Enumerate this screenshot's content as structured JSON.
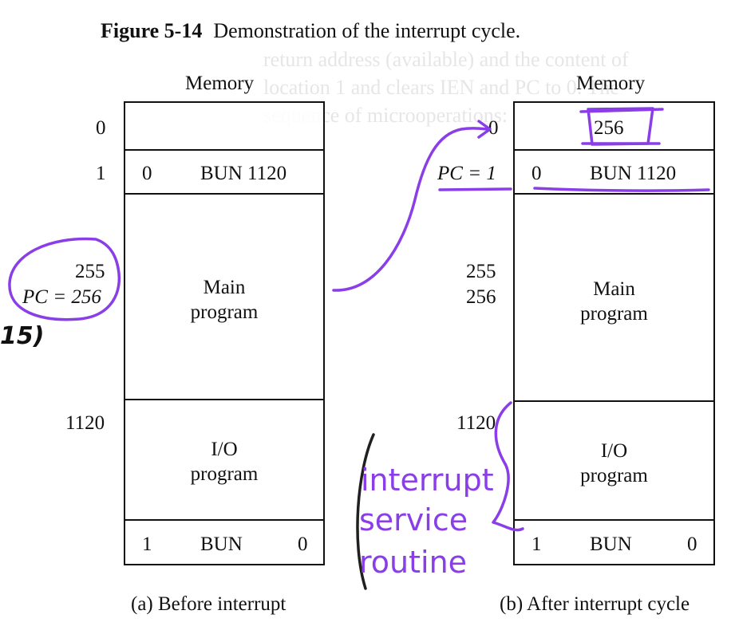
{
  "figure": {
    "number": "Figure 5-14",
    "caption": "Demonstration of the interrupt cycle."
  },
  "left_diagram": {
    "header": "Memory",
    "address_0": "0",
    "address_1": "1",
    "word1_i": "0",
    "word1_instr": "BUN 1120",
    "address_255": "255",
    "pc": "PC = 256",
    "main_program": [
      "Main",
      "program"
    ],
    "address_1120": "1120",
    "io_program": [
      "I/O",
      "program"
    ],
    "last_i": "1",
    "last_op": "BUN",
    "last_addr": "0",
    "subcaption": "(a) Before interrupt"
  },
  "right_diagram": {
    "header": "Memory",
    "address_0": "0",
    "word0_value": "256",
    "pc": "PC = 1",
    "word1_i": "0",
    "word1_instr": "BUN 1120",
    "address_255": "255",
    "address_256": "256",
    "main_program": [
      "Main",
      "program"
    ],
    "address_1120": "1120",
    "io_program": [
      "I/O",
      "program"
    ],
    "last_i": "1",
    "last_op": "BUN",
    "last_addr": "0",
    "subcaption": "(b) After interrupt cycle"
  },
  "margin_label": "15)",
  "annotation": {
    "color": "#8a3ee8",
    "lines": [
      "interrupt",
      "service",
      "routine"
    ]
  }
}
